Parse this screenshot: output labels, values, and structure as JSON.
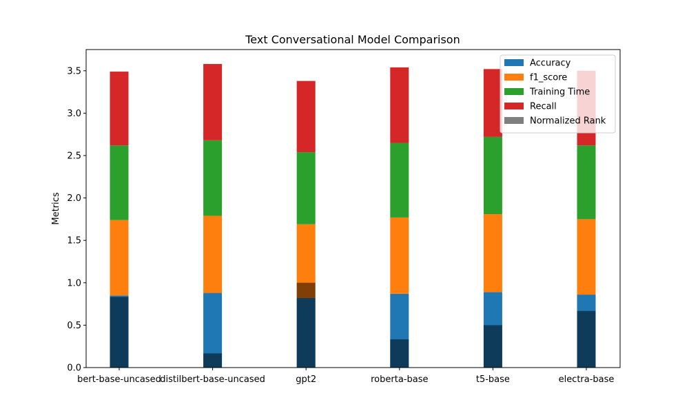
{
  "chart_data": {
    "type": "bar",
    "stacked": true,
    "title": "Text Conversational Model Comparison",
    "xlabel": "",
    "ylabel": "Metrics",
    "ylim": [
      0,
      3.75
    ],
    "yticks": [
      "0.0",
      "0.5",
      "1.0",
      "1.5",
      "2.0",
      "2.5",
      "3.0",
      "3.5"
    ],
    "categories": [
      "bert-base-uncased",
      "distilbert-base-uncased",
      "gpt2",
      "roberta-base",
      "t5-base",
      "electra-base"
    ],
    "series": [
      {
        "name": "Accuracy",
        "color": "#1f77b4",
        "values": [
          0.85,
          0.88,
          0.82,
          0.87,
          0.89,
          0.86
        ]
      },
      {
        "name": "f1_score",
        "color": "#ff7f0e",
        "values": [
          0.89,
          0.91,
          0.87,
          0.9,
          0.92,
          0.89
        ]
      },
      {
        "name": "Training Time",
        "color": "#2ca02c",
        "values": [
          0.88,
          0.89,
          0.85,
          0.88,
          0.91,
          0.87
        ]
      },
      {
        "name": "Recall",
        "color": "#d62728",
        "values": [
          0.87,
          0.9,
          0.84,
          0.89,
          0.8,
          0.88
        ]
      }
    ],
    "overlay": {
      "name": "Normalized Rank",
      "color": "#7f7f7f",
      "alpha": 0.5,
      "values": [
        0.833,
        0.167,
        1.0,
        0.333,
        0.5,
        0.667
      ]
    },
    "legend": {
      "placement": "top-right"
    }
  }
}
